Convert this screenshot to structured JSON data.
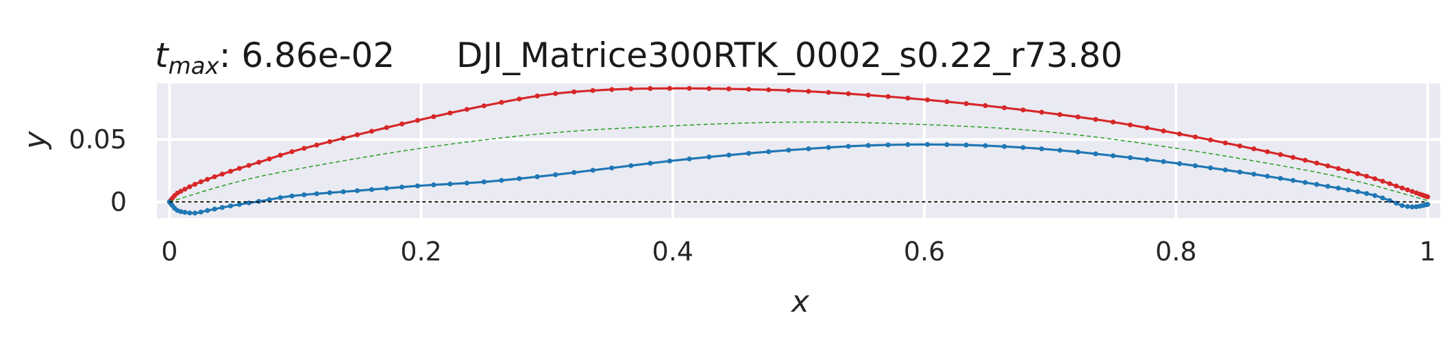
{
  "chart_data": {
    "type": "line",
    "title": {
      "var": "t",
      "sub": "max",
      "value": ": 6.86e-02",
      "name": "DJI_Matrice300RTK_0002_s0.22_r73.80"
    },
    "xlabel": "x",
    "ylabel": "y",
    "xlim": [
      -0.01,
      1.01
    ],
    "ylim": [
      -0.013,
      0.095
    ],
    "x_ticks": [
      0,
      0.2,
      0.4,
      0.6,
      0.8,
      1
    ],
    "x_tick_labels": [
      "0",
      "0.2",
      "0.4",
      "0.6",
      "0.8",
      "1"
    ],
    "y_ticks": [
      0,
      0.05
    ],
    "y_tick_labels": [
      "0",
      "0.05"
    ],
    "grid": true,
    "background": "#eaeaf2",
    "colors": {
      "upper": "#d62728",
      "lower": "#1f77b4",
      "camber": "#2ca02c",
      "chord": "#000000"
    },
    "series": [
      {
        "role": "upper",
        "style": "line-with-markers",
        "points": [
          [
            0.0,
            0.0
          ],
          [
            0.005,
            0.006
          ],
          [
            0.01,
            0.009
          ],
          [
            0.02,
            0.014
          ],
          [
            0.03,
            0.018
          ],
          [
            0.05,
            0.025
          ],
          [
            0.075,
            0.033
          ],
          [
            0.1,
            0.041
          ],
          [
            0.15,
            0.054
          ],
          [
            0.2,
            0.066
          ],
          [
            0.25,
            0.077
          ],
          [
            0.3,
            0.086
          ],
          [
            0.35,
            0.09
          ],
          [
            0.4,
            0.091
          ],
          [
            0.45,
            0.0905
          ],
          [
            0.5,
            0.089
          ],
          [
            0.55,
            0.086
          ],
          [
            0.6,
            0.082
          ],
          [
            0.65,
            0.077
          ],
          [
            0.7,
            0.071
          ],
          [
            0.75,
            0.064
          ],
          [
            0.8,
            0.055
          ],
          [
            0.85,
            0.045
          ],
          [
            0.9,
            0.034
          ],
          [
            0.95,
            0.021
          ],
          [
            0.98,
            0.011
          ],
          [
            1.0,
            0.004
          ]
        ]
      },
      {
        "role": "lower",
        "style": "line-with-markers",
        "points": [
          [
            0.0,
            0.0
          ],
          [
            0.005,
            -0.006
          ],
          [
            0.01,
            -0.008
          ],
          [
            0.02,
            -0.009
          ],
          [
            0.03,
            -0.007
          ],
          [
            0.05,
            -0.003
          ],
          [
            0.075,
            0.001
          ],
          [
            0.1,
            0.005
          ],
          [
            0.15,
            0.009
          ],
          [
            0.2,
            0.013
          ],
          [
            0.25,
            0.016
          ],
          [
            0.3,
            0.021
          ],
          [
            0.35,
            0.027
          ],
          [
            0.4,
            0.033
          ],
          [
            0.45,
            0.038
          ],
          [
            0.5,
            0.042
          ],
          [
            0.55,
            0.045
          ],
          [
            0.6,
            0.046
          ],
          [
            0.65,
            0.045
          ],
          [
            0.7,
            0.042
          ],
          [
            0.75,
            0.037
          ],
          [
            0.8,
            0.031
          ],
          [
            0.85,
            0.024
          ],
          [
            0.9,
            0.016
          ],
          [
            0.95,
            0.007
          ],
          [
            0.97,
            0.001
          ],
          [
            0.98,
            -0.003
          ],
          [
            0.99,
            -0.004
          ],
          [
            1.0,
            -0.002
          ]
        ]
      },
      {
        "role": "camber",
        "style": "dashed",
        "points": [
          [
            0.0,
            0.0
          ],
          [
            0.05,
            0.015
          ],
          [
            0.1,
            0.026
          ],
          [
            0.2,
            0.043
          ],
          [
            0.3,
            0.055
          ],
          [
            0.4,
            0.061
          ],
          [
            0.5,
            0.064
          ],
          [
            0.6,
            0.062
          ],
          [
            0.7,
            0.056
          ],
          [
            0.8,
            0.043
          ],
          [
            0.9,
            0.026
          ],
          [
            0.95,
            0.015
          ],
          [
            1.0,
            0.001
          ]
        ]
      },
      {
        "role": "chord",
        "style": "dashed",
        "points": [
          [
            0.0,
            0.0
          ],
          [
            1.0,
            0.0
          ]
        ]
      }
    ]
  }
}
